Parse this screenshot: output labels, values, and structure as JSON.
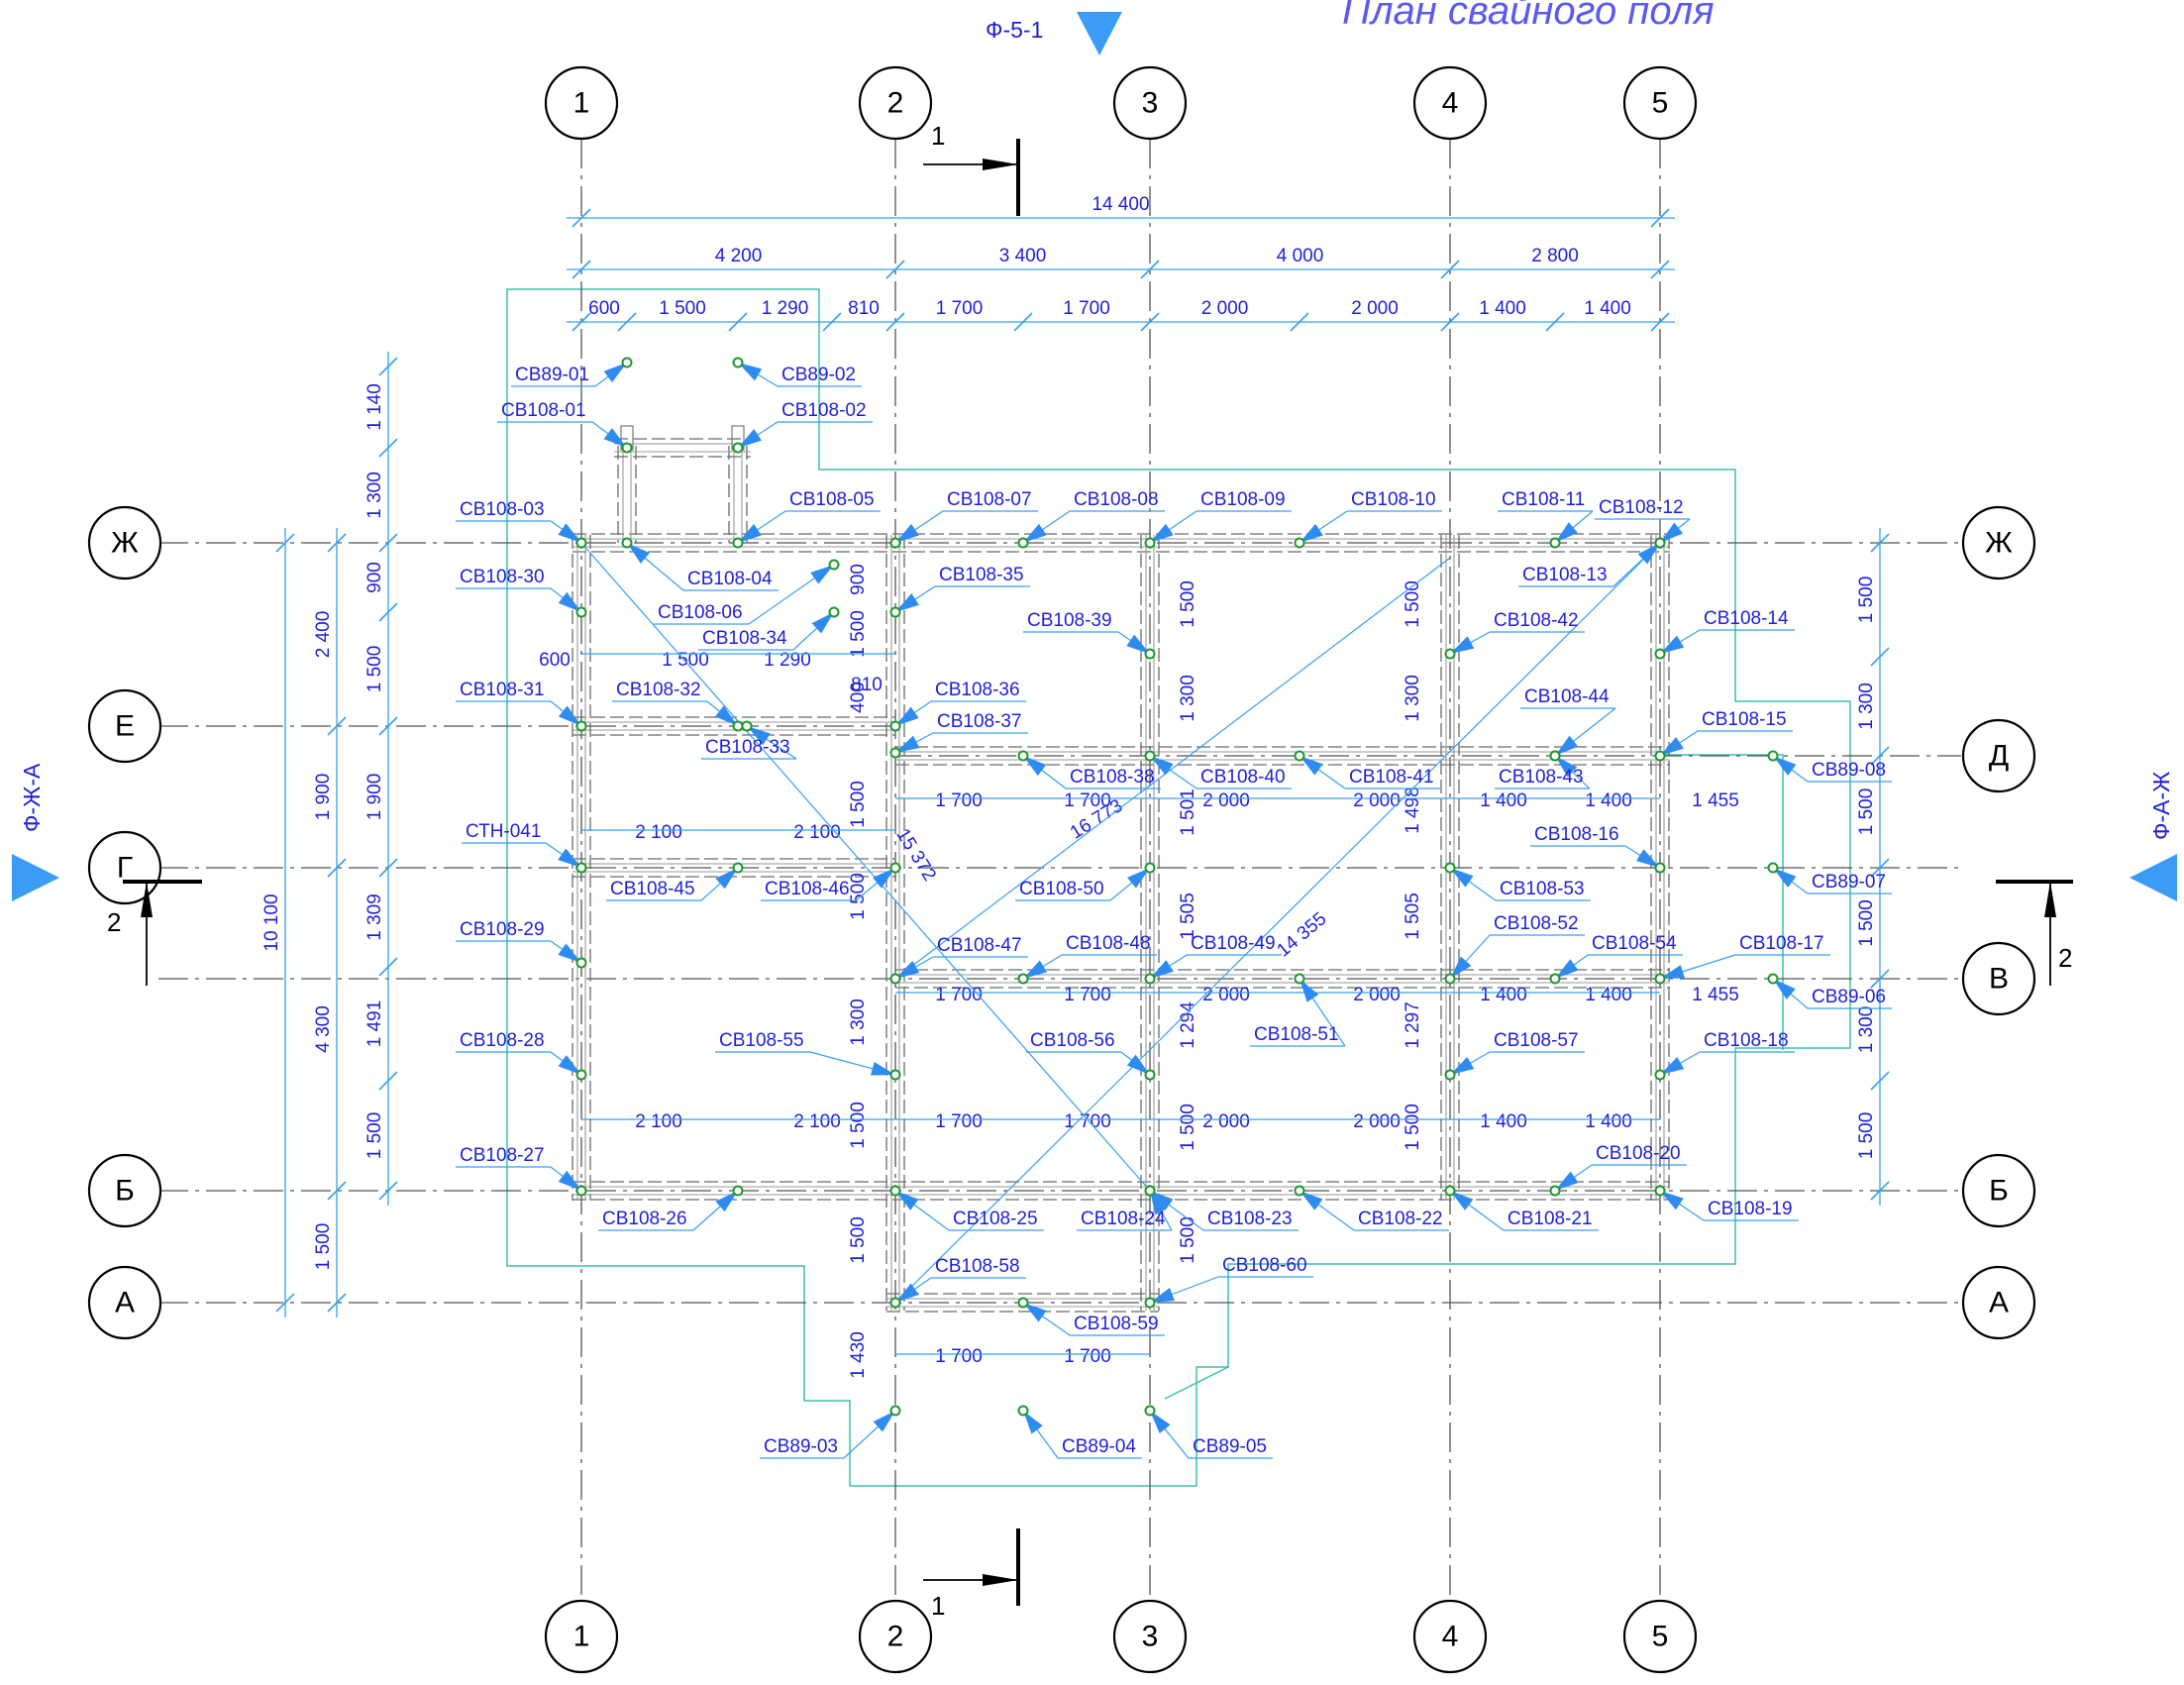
{
  "title": "План свайного поля",
  "view_markers": {
    "top": "Ф-5-1",
    "left": "Ф-Ж-А",
    "right": "Ф-А-Ж"
  },
  "grid_columns": [
    "1",
    "2",
    "3",
    "4",
    "5"
  ],
  "grid_rows": [
    "Ж",
    "Е",
    "Д",
    "Г",
    "В",
    "Б",
    "А"
  ],
  "sections": {
    "s1": "1",
    "s2": "2"
  },
  "dims_top": {
    "total": "14 400",
    "spans": [
      "4 200",
      "3 400",
      "4 000",
      "2 800"
    ],
    "subspans": [
      "600",
      "1 500",
      "1 290",
      "810",
      "1 700",
      "1 700",
      "2 000",
      "2 000",
      "1 400",
      "1 400"
    ]
  },
  "dims_left": {
    "total": "10 100",
    "mid": [
      "2 400",
      "1 900",
      "4 300",
      "1 500"
    ],
    "inner": [
      "1 140",
      "1 300",
      "900",
      "1 500",
      "1 900",
      "1 309",
      "1 491",
      "1 500"
    ]
  },
  "dims_right": [
    "1 500",
    "1 300",
    "1 500",
    "1 500",
    "1 300",
    "1 500"
  ],
  "dims_internal": [
    "600",
    "1 500",
    "1 290",
    "810",
    "2 100",
    "2 100",
    "2 100",
    "2 100",
    "1 700",
    "1 700",
    "2 000",
    "2 000",
    "1 400",
    "1 400",
    "1 455",
    "1 700",
    "1 700",
    "2 000",
    "2 000",
    "1 400",
    "1 400",
    "1 455",
    "1 700",
    "1 700",
    "2 000",
    "2 000",
    "1 400",
    "1 400",
    "1 700",
    "1 700",
    "900",
    "1 500",
    "400",
    "1 500",
    "1 500",
    "1 300",
    "1 500",
    "1 500",
    "1 430",
    "1 500",
    "1 300",
    "1 501",
    "1 505",
    "1 294",
    "1 500",
    "1 500",
    "1 500",
    "1 300",
    "1 498",
    "1 505",
    "1 297",
    "1 500",
    "16 773",
    "15 372",
    "14 355"
  ],
  "piles": [
    "СВ89-01",
    "СВ89-02",
    "СВ108-01",
    "СВ108-02",
    "СВ108-03",
    "СВ108-04",
    "СВ108-05",
    "СВ108-06",
    "СВ108-07",
    "СВ108-08",
    "СВ108-09",
    "СВ108-10",
    "СВ108-11",
    "СВ108-12",
    "СВ108-13",
    "СВ108-14",
    "СВ108-30",
    "СВ108-34",
    "СВ108-35",
    "СВ108-39",
    "СВ108-42",
    "СВ108-31",
    "СВ108-32",
    "СВ108-33",
    "СВ108-36",
    "СВ108-37",
    "СВ108-44",
    "СВ108-15",
    "СВ108-38",
    "СВ108-40",
    "СВ108-41",
    "СВ108-43",
    "СВ89-08",
    "СТН-041",
    "СВ108-45",
    "СВ108-46",
    "СВ108-50",
    "СВ108-16",
    "СВ108-53",
    "СВ89-07",
    "СВ108-29",
    "СВ108-47",
    "СВ108-48",
    "СВ108-49",
    "СВ108-52",
    "СВ108-54",
    "СВ108-17",
    "СВ89-06",
    "СВ108-28",
    "СВ108-55",
    "СВ108-56",
    "СВ108-51",
    "СВ108-57",
    "СВ108-18",
    "СВ108-27",
    "СВ108-20",
    "СВ108-26",
    "СВ108-25",
    "СВ108-24",
    "СВ108-23",
    "СВ108-22",
    "СВ108-21",
    "СВ108-19",
    "СВ108-58",
    "СВ108-60",
    "СВ108-59",
    "СВ89-03",
    "СВ89-04",
    "СВ89-05"
  ],
  "colors": {
    "dimension": "#37a0f0",
    "text": "#1f1fd6",
    "pile": "#1a9a2a",
    "contour": "#3fbfa8",
    "title": "#5a5af0"
  }
}
